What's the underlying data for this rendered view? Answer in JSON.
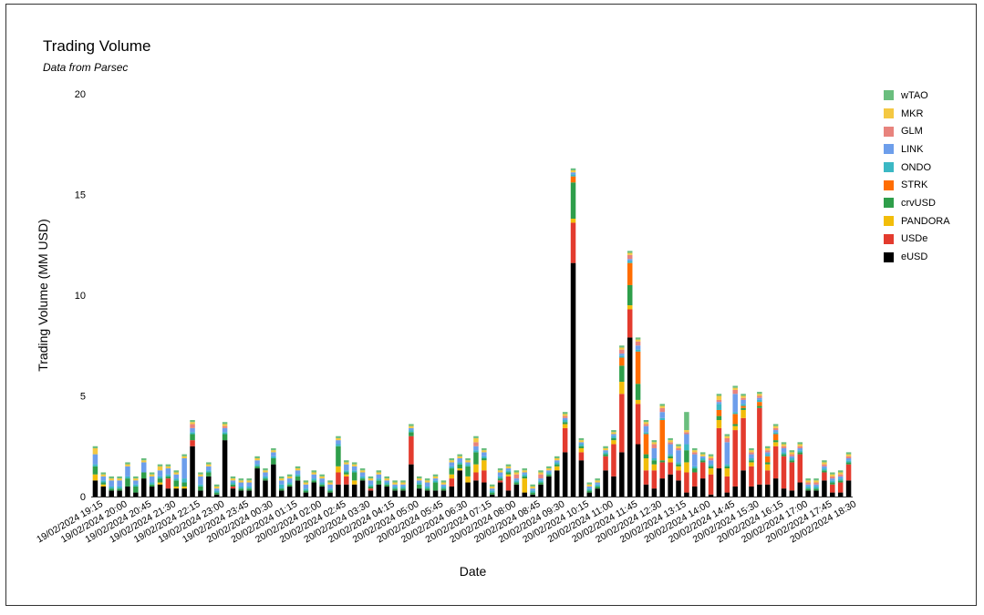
{
  "header": {
    "title": "Trading Volume",
    "subtitle": "Data from Parsec"
  },
  "chart_data": {
    "type": "bar",
    "stacked": true,
    "xlabel": "Date",
    "ylabel": "Trading Volume (MM USD)",
    "ylim": [
      0,
      20
    ],
    "yticks": [
      0,
      5,
      10,
      15,
      20
    ],
    "grid": false,
    "legend_position": "right",
    "xtick_labels": [
      "19/02/2024 19:15",
      "19/02/2024 20:00",
      "19/02/2024 20:45",
      "19/02/2024 21:30",
      "19/02/2024 22:15",
      "19/02/2024 23:00",
      "19/02/2024 23:45",
      "20/02/2024 00:30",
      "20/02/2024 01:15",
      "20/02/2024 02:00",
      "20/02/2024 02:45",
      "20/02/2024 03:30",
      "20/02/2024 04:15",
      "20/02/2024 05:00",
      "20/02/2024 05:45",
      "20/02/2024 06:30",
      "20/02/2024 07:15",
      "20/02/2024 08:00",
      "20/02/2024 08:45",
      "20/02/2024 09:30",
      "20/02/2024 10:15",
      "20/02/2024 11:00",
      "20/02/2024 11:45",
      "20/02/2024 12:30",
      "20/02/2024 13:15",
      "20/02/2024 14:00",
      "20/02/2024 14:45",
      "20/02/2024 15:30",
      "20/02/2024 16:15",
      "20/02/2024 17:00",
      "20/02/2024 17:45",
      "20/02/2024 18:30"
    ],
    "xtick_every": 3,
    "series": [
      {
        "name": "eUSD",
        "color": "#000000",
        "values": [
          0.8,
          0.5,
          0.3,
          0.3,
          0.5,
          0.2,
          0.9,
          0.5,
          0.6,
          0.4,
          0.4,
          0.4,
          2.5,
          0.3,
          1.0,
          0.1,
          2.8,
          0.4,
          0.3,
          0.3,
          1.4,
          0.8,
          1.6,
          0.3,
          0.5,
          0.8,
          0.2,
          0.7,
          0.5,
          0.2,
          0.6,
          0.6,
          0.6,
          0.8,
          0.3,
          0.6,
          0.5,
          0.3,
          0.3,
          1.6,
          0.4,
          0.3,
          0.3,
          0.3,
          0.5,
          1.3,
          0.7,
          0.8,
          0.7,
          0.1,
          0.7,
          0.3,
          0.6,
          0.2,
          0.1,
          0.6,
          1.0,
          1.3,
          2.2,
          11.6,
          1.8,
          0.2,
          0.4,
          1.3,
          1.0,
          2.2,
          7.9,
          2.6,
          0.6,
          0.4,
          0.9,
          1.1,
          0.8,
          0.2,
          0.5,
          0.9,
          0.1,
          1.4,
          0.2,
          0.5,
          1.3,
          0.5,
          0.6,
          0.6,
          0.9,
          0.4,
          0.3,
          0.7,
          0.3,
          0.3,
          0.8,
          0.2,
          0.2,
          0.8
        ]
      },
      {
        "name": "USDe",
        "color": "#e33b2e",
        "values": [
          0,
          0,
          0,
          0,
          0,
          0,
          0,
          0,
          0,
          0.5,
          0,
          0,
          0.3,
          0,
          0,
          0,
          0,
          0.1,
          0,
          0,
          0,
          0,
          0,
          0,
          0,
          0,
          0,
          0,
          0,
          0,
          0.6,
          0.4,
          0,
          0,
          0.1,
          0,
          0,
          0,
          0,
          1.4,
          0,
          0,
          0,
          0,
          0.4,
          0,
          0,
          0.4,
          0.6,
          0,
          0.1,
          0.7,
          0,
          0,
          0,
          0,
          0,
          0,
          1.2,
          2.0,
          0.4,
          0,
          0,
          0.7,
          1.6,
          2.9,
          1.4,
          2.0,
          0.7,
          0.9,
          0.8,
          0.6,
          0.5,
          1.0,
          0.7,
          0.8,
          1.0,
          2.0,
          0.8,
          2.8,
          2.6,
          1.0,
          3.8,
          0.7,
          1.6,
          1.6,
          1.4,
          1.4,
          0,
          0,
          0.4,
          0.4,
          0.5,
          0.8
        ]
      },
      {
        "name": "PANDORA",
        "color": "#f2bd0a",
        "values": [
          0.3,
          0.1,
          0,
          0,
          0,
          0,
          0,
          0,
          0.1,
          0,
          0.1,
          0.1,
          0,
          0,
          0,
          0,
          0,
          0,
          0,
          0,
          0,
          0,
          0,
          0,
          0,
          0,
          0,
          0,
          0,
          0,
          0.3,
          0.1,
          0.2,
          0,
          0,
          0,
          0,
          0,
          0,
          0,
          0,
          0,
          0,
          0,
          0.2,
          0.1,
          0.3,
          0.4,
          0.5,
          0,
          0,
          0.1,
          0,
          0.7,
          0,
          0,
          0,
          0.2,
          0.2,
          0.2,
          0.2,
          0,
          0,
          0,
          0.2,
          0.6,
          0.2,
          0.2,
          0.6,
          0.3,
          0,
          0.2,
          0.2,
          0.5,
          0,
          0,
          0.3,
          0.4,
          0.4,
          0.2,
          0.4,
          0.2,
          0,
          0.3,
          0.2,
          0,
          0,
          0,
          0,
          0,
          0,
          0,
          0,
          0
        ]
      },
      {
        "name": "crvUSD",
        "color": "#2e9e4a",
        "values": [
          0.4,
          0.1,
          0.1,
          0.1,
          0.4,
          0.3,
          0.3,
          0.1,
          0.2,
          0.1,
          0.3,
          0.2,
          0.3,
          0.2,
          0.2,
          0.1,
          0.3,
          0.1,
          0.1,
          0.1,
          0.1,
          0.1,
          0.3,
          0.1,
          0.1,
          0.2,
          0.1,
          0.1,
          0.1,
          0.1,
          1.0,
          0.1,
          0.4,
          0.1,
          0.1,
          0.2,
          0.1,
          0.1,
          0.1,
          0.2,
          0.2,
          0.1,
          0.4,
          0.1,
          0.3,
          0.2,
          0.5,
          0.6,
          0.1,
          0.1,
          0.1,
          0.1,
          0.1,
          0.1,
          0.1,
          0.1,
          0.1,
          0.1,
          0.1,
          1.8,
          0.1,
          0.1,
          0.1,
          0.1,
          0.1,
          0.8,
          1.0,
          0.8,
          0.2,
          0.2,
          0.1,
          0.1,
          0.1,
          0.6,
          0.2,
          0.1,
          0.1,
          0.2,
          0.1,
          0.1,
          0.1,
          0.1,
          0.1,
          0.1,
          0.1,
          0.1,
          0.1,
          0.1,
          0.1,
          0.1,
          0.1,
          0.1,
          0.1,
          0.1
        ]
      },
      {
        "name": "STRK",
        "color": "#ff6d01",
        "values": [
          0,
          0,
          0,
          0,
          0,
          0,
          0,
          0,
          0,
          0,
          0,
          0,
          0,
          0,
          0,
          0,
          0,
          0,
          0,
          0,
          0,
          0,
          0,
          0,
          0,
          0,
          0,
          0,
          0,
          0,
          0,
          0,
          0,
          0,
          0,
          0,
          0,
          0,
          0,
          0,
          0,
          0,
          0,
          0,
          0,
          0,
          0,
          0,
          0,
          0,
          0,
          0,
          0,
          0,
          0,
          0,
          0,
          0,
          0,
          0.3,
          0,
          0,
          0,
          0,
          0,
          0.4,
          1.1,
          1.6,
          1.0,
          0,
          2.0,
          0,
          0,
          0,
          0,
          0,
          0,
          0.3,
          0,
          0.5,
          0.1,
          0,
          0.2,
          0.3,
          0.3,
          0,
          0,
          0,
          0,
          0,
          0,
          0,
          0,
          0
        ]
      },
      {
        "name": "ONDO",
        "color": "#3bb8c4",
        "values": [
          0.1,
          0.1,
          0.1,
          0.1,
          0.1,
          0.1,
          0,
          0.1,
          0.1,
          0.1,
          0.1,
          0.2,
          0.1,
          0.1,
          0.1,
          0.1,
          0.1,
          0.1,
          0.1,
          0.1,
          0.1,
          0.1,
          0.1,
          0.2,
          0.1,
          0.1,
          0.1,
          0.1,
          0.1,
          0.1,
          0.1,
          0.1,
          0.1,
          0.1,
          0.1,
          0.1,
          0.1,
          0.1,
          0.1,
          0.1,
          0.1,
          0.1,
          0.1,
          0.1,
          0.1,
          0.1,
          0.1,
          0.1,
          0.1,
          0.1,
          0.1,
          0.1,
          0.1,
          0.1,
          0.1,
          0.1,
          0.1,
          0.1,
          0.1,
          0.1,
          0.1,
          0.1,
          0.1,
          0.1,
          0.1,
          0.1,
          0.1,
          0.1,
          0.1,
          0.1,
          0.1,
          0.1,
          0.1,
          0.3,
          0.1,
          0.1,
          0.1,
          0.3,
          0.1,
          0.1,
          0.1,
          0.1,
          0.1,
          0.1,
          0.1,
          0.1,
          0.1,
          0.1,
          0.1,
          0.1,
          0.1,
          0.1,
          0.1,
          0.1
        ]
      },
      {
        "name": "LINK",
        "color": "#6d9eeb",
        "values": [
          0.5,
          0.2,
          0.3,
          0.3,
          0.5,
          0.2,
          0.5,
          0.3,
          0.3,
          0.3,
          0.2,
          1.0,
          0.2,
          0.4,
          0.2,
          0.1,
          0.2,
          0.1,
          0.2,
          0.2,
          0.2,
          0.2,
          0.2,
          0.2,
          0.2,
          0.2,
          0.2,
          0.2,
          0.2,
          0.2,
          0.2,
          0.3,
          0.2,
          0.2,
          0.2,
          0.2,
          0.1,
          0.1,
          0.1,
          0.1,
          0.1,
          0.2,
          0.1,
          0.1,
          0.2,
          0.2,
          0.1,
          0.2,
          0.2,
          0.1,
          0.2,
          0.1,
          0.1,
          0.1,
          0.1,
          0.1,
          0.1,
          0.1,
          0.1,
          0.1,
          0.1,
          0.1,
          0.1,
          0.1,
          0.1,
          0.1,
          0.1,
          0.2,
          0.3,
          0.5,
          0.3,
          0.5,
          0.6,
          0.5,
          0.6,
          0.1,
          0.2,
          0.1,
          1.1,
          0.9,
          0.2,
          0.2,
          0.1,
          0.1,
          0.1,
          0.2,
          0.1,
          0.1,
          0.1,
          0.1,
          0.1,
          0.1,
          0.1,
          0.1
        ]
      },
      {
        "name": "GLM",
        "color": "#e8837d",
        "values": [
          0,
          0,
          0,
          0,
          0,
          0,
          0,
          0,
          0,
          0,
          0,
          0,
          0.2,
          0,
          0,
          0,
          0.1,
          0,
          0,
          0,
          0,
          0,
          0,
          0,
          0,
          0,
          0,
          0,
          0,
          0,
          0,
          0,
          0,
          0,
          0,
          0,
          0,
          0,
          0,
          0,
          0,
          0,
          0,
          0,
          0,
          0,
          0,
          0.2,
          0,
          0,
          0,
          0,
          0.2,
          0,
          0,
          0.2,
          0,
          0,
          0.1,
          0,
          0,
          0,
          0,
          0,
          0,
          0.2,
          0.2,
          0.2,
          0.1,
          0.2,
          0.2,
          0.1,
          0.1,
          0.1,
          0.1,
          0,
          0.1,
          0.1,
          0.2,
          0.2,
          0.1,
          0.1,
          0.1,
          0.1,
          0.1,
          0.1,
          0.1,
          0.1,
          0.1,
          0.1,
          0.1,
          0.1,
          0.1,
          0.1
        ]
      },
      {
        "name": "MKR",
        "color": "#f4c842",
        "values": [
          0.3,
          0.1,
          0.1,
          0.1,
          0.1,
          0.1,
          0.1,
          0.1,
          0.2,
          0.1,
          0.1,
          0.1,
          0.1,
          0.1,
          0.1,
          0.1,
          0.1,
          0.1,
          0.1,
          0.1,
          0.1,
          0.1,
          0.1,
          0.1,
          0.1,
          0.1,
          0.1,
          0.1,
          0.1,
          0.1,
          0.1,
          0.1,
          0.1,
          0.1,
          0.1,
          0.1,
          0.1,
          0.1,
          0.1,
          0.1,
          0.1,
          0.1,
          0.1,
          0.1,
          0.1,
          0.1,
          0.1,
          0.2,
          0.1,
          0.1,
          0.1,
          0.1,
          0.1,
          0.1,
          0.1,
          0.1,
          0.1,
          0.1,
          0.1,
          0.1,
          0.1,
          0.1,
          0.1,
          0.1,
          0.1,
          0.1,
          0.1,
          0.1,
          0.1,
          0.1,
          0.1,
          0.1,
          0.1,
          0.1,
          0.1,
          0.1,
          0.1,
          0.2,
          0.1,
          0.1,
          0.1,
          0.1,
          0.1,
          0.1,
          0.1,
          0.1,
          0.1,
          0.1,
          0.1,
          0.1,
          0.1,
          0.1,
          0.1,
          0.1
        ]
      },
      {
        "name": "wTAO",
        "color": "#6abe7e",
        "values": [
          0.1,
          0.1,
          0.1,
          0.1,
          0.1,
          0.1,
          0.1,
          0.1,
          0.1,
          0.1,
          0.1,
          0.1,
          0.1,
          0.1,
          0.1,
          0.1,
          0.1,
          0.1,
          0.1,
          0.1,
          0.1,
          0.1,
          0.1,
          0.1,
          0.1,
          0.1,
          0.1,
          0.1,
          0.1,
          0.1,
          0.1,
          0.1,
          0.1,
          0.1,
          0.1,
          0.1,
          0.1,
          0.1,
          0.1,
          0.1,
          0.1,
          0.1,
          0.1,
          0.1,
          0.1,
          0.1,
          0.1,
          0.1,
          0.1,
          0.1,
          0.1,
          0.1,
          0.1,
          0.1,
          0.1,
          0.1,
          0.1,
          0.1,
          0.1,
          0.1,
          0.1,
          0.1,
          0.1,
          0.1,
          0.1,
          0.1,
          0.1,
          0.1,
          0.1,
          0.1,
          0.1,
          0.1,
          0.1,
          0.9,
          0.1,
          0.1,
          0.1,
          0.1,
          0.1,
          0.1,
          0.1,
          0.1,
          0.1,
          0.1,
          0.1,
          0.1,
          0.1,
          0.1,
          0.1,
          0.1,
          0.1,
          0.1,
          0.1,
          0.1
        ]
      }
    ]
  }
}
